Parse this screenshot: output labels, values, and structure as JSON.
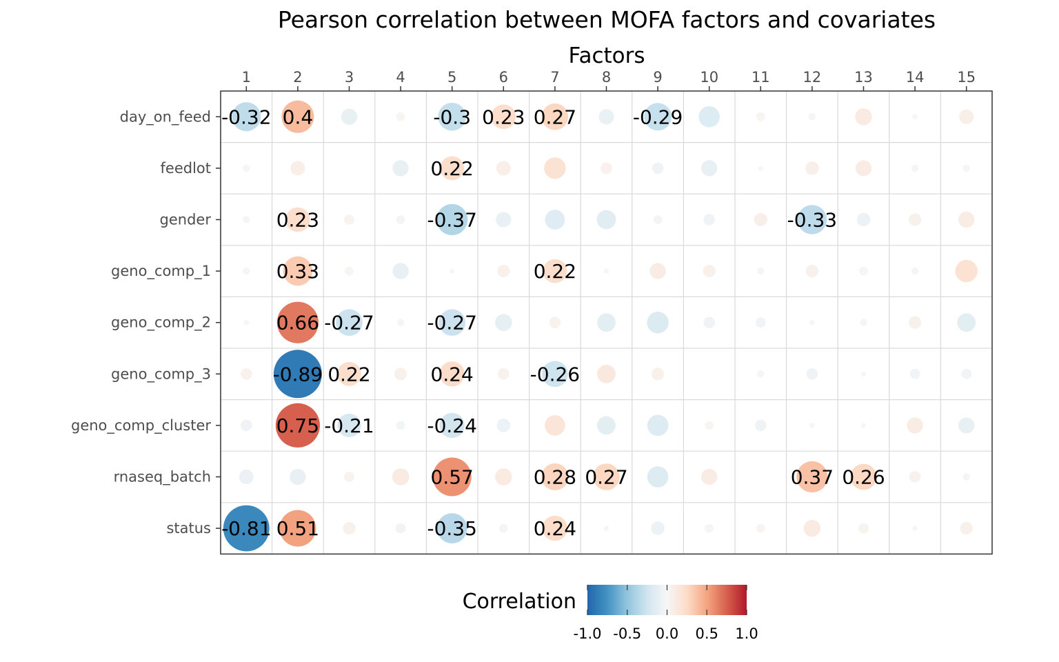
{
  "chart_data": {
    "type": "heatmap",
    "style": "bubble-correlation",
    "title": "Pearson correlation between MOFA factors and covariates",
    "xlabel": "Factors",
    "x_axis_position": "top",
    "columns": [
      "1",
      "2",
      "3",
      "4",
      "5",
      "6",
      "7",
      "8",
      "9",
      "10",
      "11",
      "12",
      "13",
      "14",
      "15"
    ],
    "rows": [
      "day_on_feed",
      "feedlot",
      "gender",
      "geno_comp_1",
      "geno_comp_2",
      "geno_comp_3",
      "geno_comp_cluster",
      "rnaseq_batch",
      "status"
    ],
    "values": [
      [
        -0.32,
        0.4,
        -0.1,
        0.03,
        -0.3,
        0.23,
        0.27,
        -0.09,
        -0.29,
        -0.17,
        0.03,
        0.02,
        0.11,
        0.01,
        0.08
      ],
      [
        0.02,
        0.08,
        0.0,
        -0.1,
        0.22,
        0.08,
        0.18,
        0.05,
        -0.05,
        -0.1,
        0.01,
        0.07,
        0.1,
        0.02,
        0.02
      ],
      [
        0.02,
        0.23,
        0.04,
        -0.03,
        -0.37,
        -0.09,
        -0.15,
        -0.14,
        -0.03,
        -0.05,
        0.07,
        -0.33,
        -0.07,
        0.06,
        0.1
      ],
      [
        0.02,
        0.33,
        0.03,
        -0.1,
        0.01,
        0.06,
        0.22,
        0.01,
        0.1,
        0.06,
        0.02,
        0.06,
        0.03,
        0.02,
        0.19
      ],
      [
        0.01,
        0.66,
        -0.27,
        0.02,
        -0.27,
        -0.11,
        0.05,
        -0.13,
        -0.18,
        -0.05,
        -0.04,
        0.01,
        0.02,
        0.06,
        -0.13
      ],
      [
        0.05,
        -0.89,
        0.22,
        0.06,
        0.24,
        0.05,
        -0.26,
        0.13,
        0.06,
        0.0,
        0.02,
        -0.05,
        0.01,
        -0.04,
        -0.04
      ],
      [
        -0.05,
        0.75,
        -0.21,
        -0.03,
        -0.24,
        -0.07,
        0.16,
        -0.13,
        -0.17,
        0.03,
        -0.05,
        0.01,
        0.01,
        0.1,
        -0.1
      ],
      [
        -0.08,
        -0.1,
        0.04,
        0.11,
        0.57,
        0.11,
        0.28,
        0.27,
        -0.17,
        0.1,
        0.0,
        0.37,
        0.26,
        0.05,
        0.02
      ],
      [
        -0.81,
        0.51,
        0.06,
        -0.04,
        -0.35,
        0.03,
        0.24,
        0.01,
        -0.07,
        0.03,
        0.03,
        0.11,
        0.04,
        0.01,
        0.06
      ]
    ],
    "label_threshold": 0.2,
    "legend": {
      "title": "Correlation",
      "position": "bottom",
      "ticks": [
        "-1.0",
        "-0.5",
        "0.0",
        "0.5",
        "1.0"
      ],
      "range": [
        -1,
        1
      ],
      "colors": [
        "#2166AC",
        "#4393C3",
        "#92C5DE",
        "#D1E5F0",
        "#F7F7F7",
        "#FDDBC7",
        "#F4A582",
        "#D6604D",
        "#B2182B"
      ]
    },
    "grid": true
  }
}
